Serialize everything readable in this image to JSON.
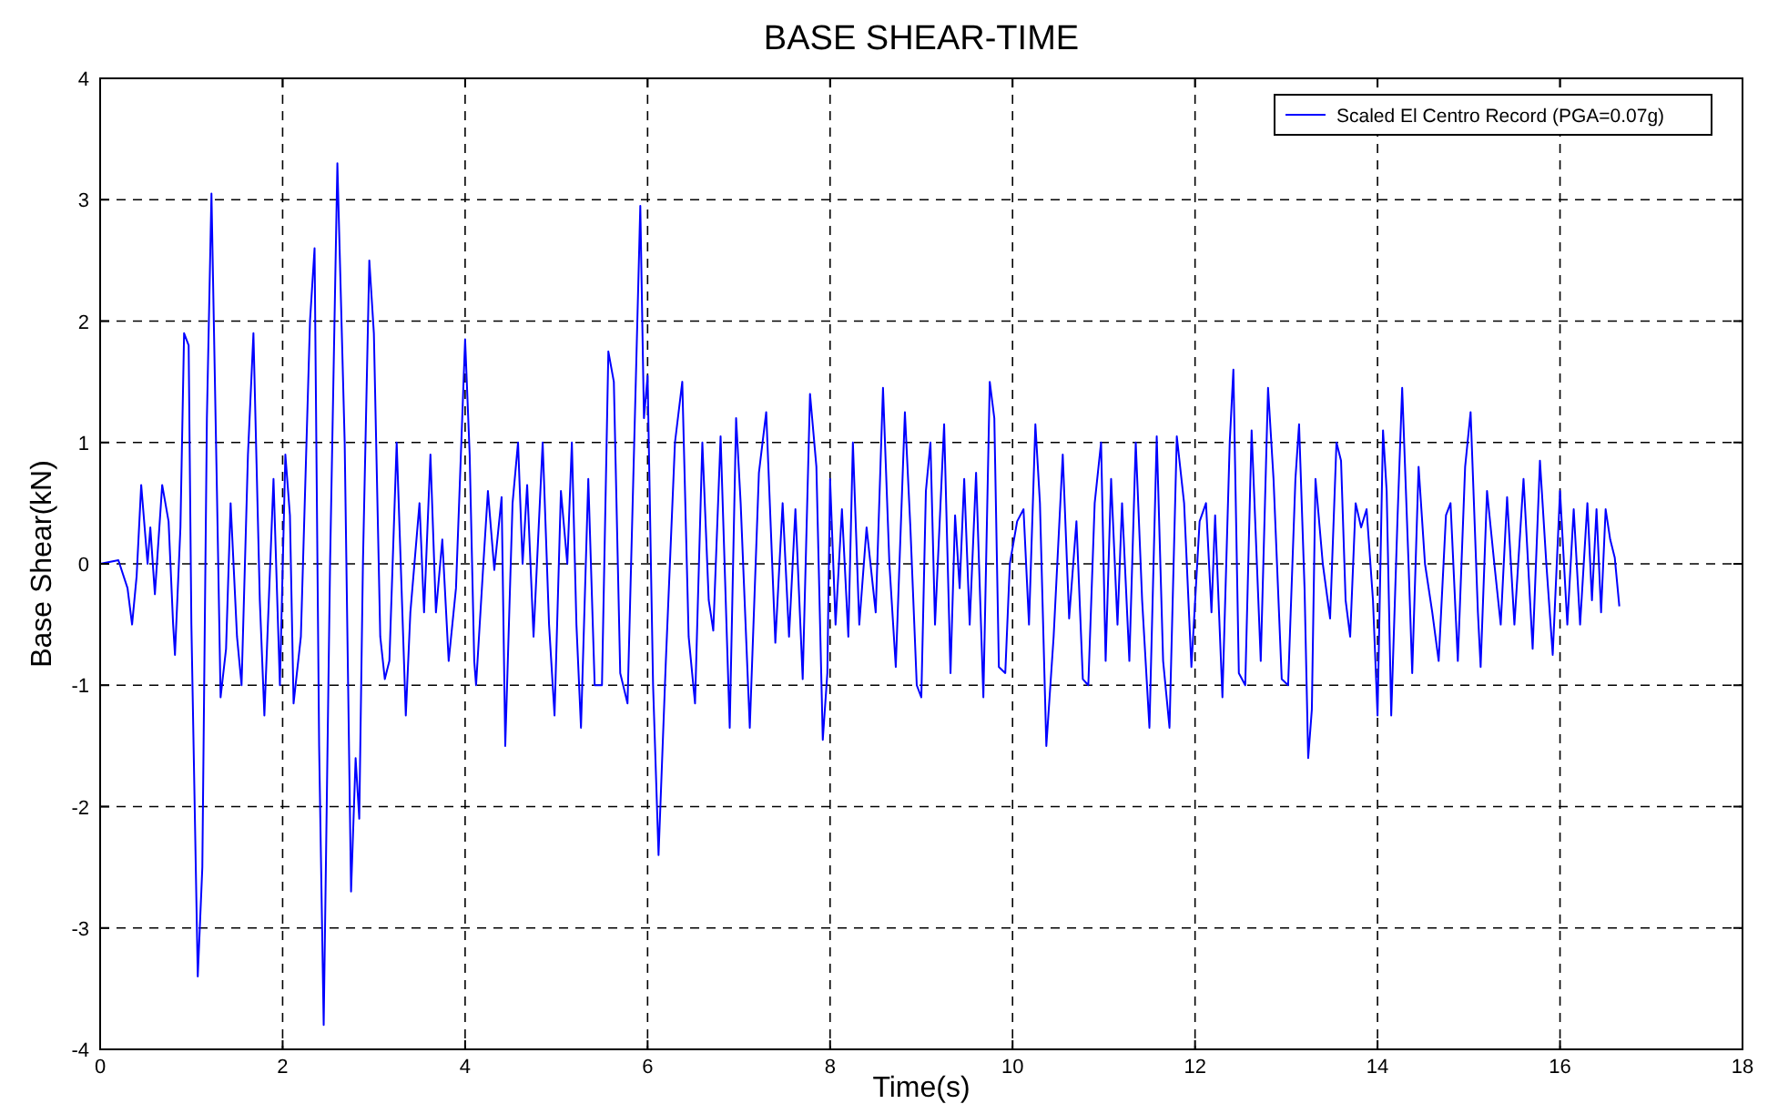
{
  "chart_data": {
    "type": "line",
    "title": "BASE SHEAR-TIME",
    "xlabel": "Time(s)",
    "ylabel": "Base Shear(kN)",
    "xlim": [
      0,
      18
    ],
    "xticks": [
      0,
      2,
      4,
      6,
      8,
      10,
      12,
      14,
      16,
      18
    ],
    "ylim": [
      -4,
      4
    ],
    "yticks": [
      -4,
      -3,
      -2,
      -1,
      0,
      1,
      2,
      3,
      4
    ],
    "grid": true,
    "legend": "top right",
    "line_style": "solid",
    "marker": "none",
    "series": [
      {
        "name": "Scaled El Centro Record (PGA=0.07g)",
        "color": "#0000ff",
        "x": [
          0,
          0.2,
          0.3,
          0.35,
          0.4,
          0.45,
          0.52,
          0.55,
          0.6,
          0.68,
          0.75,
          0.8,
          0.82,
          0.88,
          0.92,
          0.97,
          1.0,
          1.07,
          1.12,
          1.17,
          1.22,
          1.28,
          1.32,
          1.38,
          1.43,
          1.5,
          1.55,
          1.62,
          1.68,
          1.75,
          1.8,
          1.9,
          1.97,
          2.03,
          2.08,
          2.12,
          2.2,
          2.3,
          2.35,
          2.4,
          2.45,
          2.52,
          2.6,
          2.68,
          2.75,
          2.8,
          2.84,
          2.88,
          2.95,
          3.0,
          3.07,
          3.12,
          3.17,
          3.25,
          3.35,
          3.4,
          3.5,
          3.55,
          3.62,
          3.68,
          3.75,
          3.82,
          3.9,
          4.0,
          4.05,
          4.1,
          4.12,
          4.2,
          4.25,
          4.32,
          4.4,
          4.44,
          4.52,
          4.58,
          4.63,
          4.68,
          4.75,
          4.85,
          4.92,
          4.98,
          5.05,
          5.12,
          5.17,
          5.22,
          5.27,
          5.35,
          5.42,
          5.5,
          5.57,
          5.63,
          5.7,
          5.78,
          5.85,
          5.92,
          5.96,
          6.0,
          6.06,
          6.12,
          6.2,
          6.3,
          6.38,
          6.45,
          6.52,
          6.6,
          6.67,
          6.72,
          6.8,
          6.9,
          6.97,
          7.02,
          7.12,
          7.22,
          7.3,
          7.4,
          7.48,
          7.55,
          7.62,
          7.7,
          7.78,
          7.85,
          7.92,
          7.97,
          8.0,
          8.06,
          8.13,
          8.2,
          8.25,
          8.32,
          8.4,
          8.5,
          8.58,
          8.65,
          8.72,
          8.82,
          8.88,
          8.95,
          9.0,
          9.05,
          9.1,
          9.15,
          9.25,
          9.32,
          9.37,
          9.42,
          9.47,
          9.53,
          9.6,
          9.68,
          9.75,
          9.8,
          9.85,
          9.92,
          9.97,
          10.05,
          10.12,
          10.18,
          10.25,
          10.3,
          10.37,
          10.45,
          10.55,
          10.62,
          10.7,
          10.77,
          10.83,
          10.9,
          10.97,
          11.02,
          11.08,
          11.15,
          11.2,
          11.28,
          11.35,
          11.42,
          11.5,
          11.58,
          11.65,
          11.72,
          11.8,
          11.88,
          11.96,
          12.05,
          12.12,
          12.18,
          12.22,
          12.3,
          12.38,
          12.42,
          12.48,
          12.55,
          12.62,
          12.72,
          12.8,
          12.86,
          12.95,
          13.02,
          13.1,
          13.14,
          13.2,
          13.24,
          13.28,
          13.32,
          13.4,
          13.48,
          13.55,
          13.6,
          13.65,
          13.7,
          13.76,
          13.82,
          13.88,
          13.95,
          14.0,
          14.06,
          14.1,
          14.15,
          14.22,
          14.27,
          14.34,
          14.38,
          14.45,
          14.52,
          14.6,
          14.67,
          14.75,
          14.8,
          14.88,
          14.96,
          15.02,
          15.1,
          15.13,
          15.2,
          15.28,
          15.35,
          15.42,
          15.5,
          15.6,
          15.7,
          15.78,
          15.85,
          15.92,
          16.0,
          16.08,
          16.15,
          16.22,
          16.3,
          16.35,
          16.4,
          16.45,
          16.5,
          16.55,
          16.6,
          16.65
        ],
        "values": [
          0,
          0.03,
          -0.2,
          -0.5,
          -0.1,
          0.65,
          0,
          0.3,
          -0.25,
          0.65,
          0.35,
          -0.5,
          -0.75,
          0.3,
          1.9,
          1.8,
          -0.5,
          -3.4,
          -2.5,
          1.2,
          3.05,
          0.6,
          -1.1,
          -0.7,
          0.5,
          -0.6,
          -1,
          0.9,
          1.9,
          -0.3,
          -1.25,
          0.7,
          -1,
          0.9,
          0.4,
          -1.15,
          -0.6,
          2,
          2.6,
          -1.5,
          -3.8,
          0,
          3.3,
          1,
          -2.7,
          -1.6,
          -2.1,
          0,
          2.5,
          1.9,
          -0.6,
          -0.95,
          -0.8,
          1,
          -1.25,
          -0.4,
          0.5,
          -0.4,
          0.9,
          -0.4,
          0.2,
          -0.8,
          -0.2,
          1.85,
          0.9,
          -0.8,
          -1,
          0,
          0.6,
          -0.05,
          0.55,
          -1.5,
          0.5,
          1,
          0,
          0.65,
          -0.6,
          1,
          -0.5,
          -1.25,
          0.6,
          0,
          1,
          -0.5,
          -1.35,
          0.7,
          -1,
          -1,
          1.75,
          1.5,
          -0.9,
          -1.15,
          0.9,
          2.95,
          1.2,
          1.55,
          -1,
          -2.4,
          -0.8,
          1,
          1.5,
          -0.6,
          -1.15,
          1,
          -0.3,
          -0.55,
          1.05,
          -1.35,
          1.2,
          0.5,
          -1.35,
          0.75,
          1.25,
          -0.65,
          0.5,
          -0.6,
          0.45,
          -0.95,
          1.4,
          0.8,
          -1.45,
          -0.9,
          0.7,
          -0.5,
          0.45,
          -0.6,
          1,
          -0.5,
          0.3,
          -0.4,
          1.45,
          0,
          -0.85,
          1.25,
          0.3,
          -1,
          -1.1,
          0.6,
          1,
          -0.5,
          1.15,
          -0.9,
          0.4,
          -0.2,
          0.7,
          -0.5,
          0.75,
          -1.1,
          1.5,
          1.2,
          -0.85,
          -0.9,
          0,
          0.35,
          0.45,
          -0.5,
          1.15,
          0.5,
          -1.5,
          -0.6,
          0.9,
          -0.45,
          0.35,
          -0.95,
          -1,
          0.5,
          1,
          -0.8,
          0.7,
          -0.5,
          0.5,
          -0.8,
          1,
          -0.3,
          -1.35,
          1.05,
          -0.8,
          -1.35,
          1.05,
          0.5,
          -0.85,
          0.35,
          0.5,
          -0.4,
          0.4,
          -1.1,
          1,
          1.6,
          -0.9,
          -1,
          1.1,
          -0.8,
          1.45,
          0.7,
          -0.95,
          -1,
          0.7,
          1.15,
          -0.2,
          -1.6,
          -1.2,
          0.7,
          0,
          -0.45,
          1,
          0.85,
          -0.3,
          -0.6,
          0.5,
          0.3,
          0.45,
          -0.3,
          -1.25,
          1.1,
          0.6,
          -1.25,
          0.4,
          1.45,
          0,
          -0.9,
          0.8,
          0,
          -0.4,
          -0.8,
          0.4,
          0.5,
          -0.8,
          0.8,
          1.25,
          -0.4,
          -0.85,
          0.6,
          0,
          -0.5,
          0.55,
          -0.5,
          0.7,
          -0.7,
          0.85,
          0,
          -0.75,
          0.6,
          -0.5,
          0.45,
          -0.5,
          0.5,
          -0.3,
          0.45,
          -0.4,
          0.45,
          0.2,
          0.05,
          -0.35
        ]
      }
    ]
  }
}
